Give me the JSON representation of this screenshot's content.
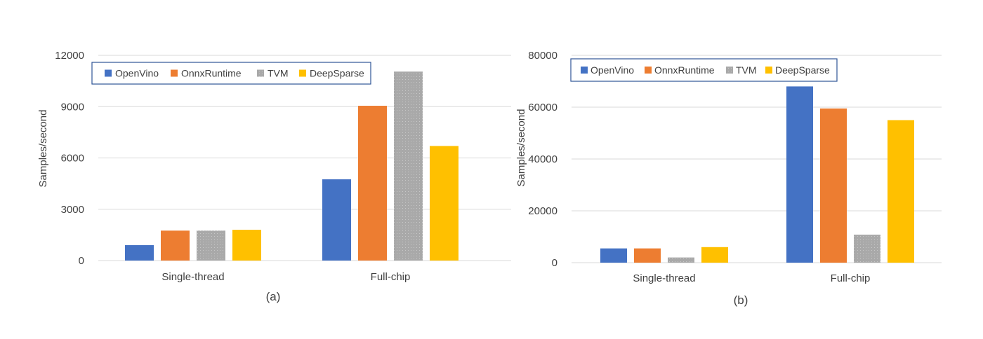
{
  "colors": {
    "OpenVino": "#4472C4",
    "OnnxRuntime": "#ED7D31",
    "TVM": "#A5A5A5",
    "DeepSparse": "#FFC000",
    "grid": "#D9D9D9",
    "axis_text": "#404040",
    "legend_border": "#2F5597"
  },
  "chart_data": [
    {
      "type": "bar",
      "panel_label": "(a)",
      "title": "",
      "xlabel": "",
      "ylabel": "Samples/second",
      "ylim": [
        0,
        12000
      ],
      "yticks": [
        0,
        3000,
        6000,
        9000,
        12000
      ],
      "yticklabels": [
        "0",
        "3000",
        "6000",
        "9000",
        "12000"
      ],
      "categories": [
        "Single-thread",
        "Full-chip"
      ],
      "grid": true,
      "legend_position": "top-left",
      "series": [
        {
          "name": "OpenVino",
          "values": [
            900,
            4750
          ]
        },
        {
          "name": "OnnxRuntime",
          "values": [
            1750,
            9050
          ]
        },
        {
          "name": "TVM",
          "values": [
            1750,
            11050
          ]
        },
        {
          "name": "DeepSparse",
          "values": [
            1800,
            6700
          ]
        }
      ]
    },
    {
      "type": "bar",
      "panel_label": "(b)",
      "title": "",
      "xlabel": "",
      "ylabel": "Samples/second",
      "ylim": [
        0,
        80000
      ],
      "yticks": [
        0,
        20000,
        40000,
        60000,
        80000
      ],
      "yticklabels": [
        "0",
        "20000",
        "40000",
        "60000",
        "80000"
      ],
      "categories": [
        "Single-thread",
        "Full-chip"
      ],
      "grid": true,
      "legend_position": "top-left",
      "series": [
        {
          "name": "OpenVino",
          "values": [
            5500,
            68000
          ]
        },
        {
          "name": "OnnxRuntime",
          "values": [
            5500,
            59500
          ]
        },
        {
          "name": "TVM",
          "values": [
            2000,
            10800
          ]
        },
        {
          "name": "DeepSparse",
          "values": [
            6000,
            55000
          ]
        }
      ]
    }
  ]
}
